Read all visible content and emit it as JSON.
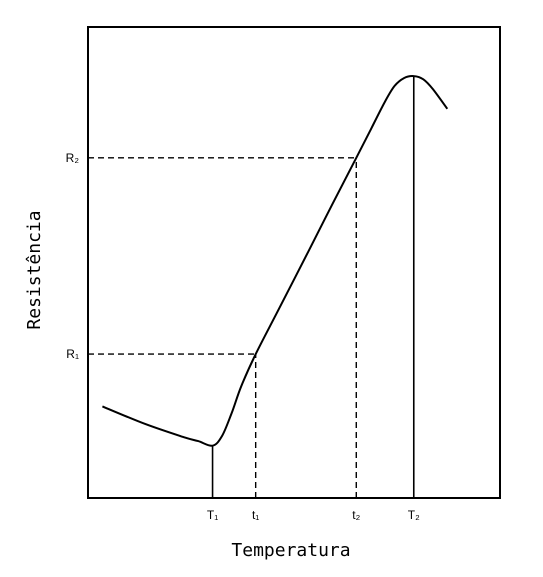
{
  "chart_data": {
    "type": "line",
    "title": "",
    "xlabel": "Temperatura",
    "ylabel": "Resistência",
    "grid": false,
    "legend": "none",
    "x_markers": [
      {
        "label": "T₁",
        "value": 1.0,
        "line": "solid",
        "curve_y": 0.8
      },
      {
        "label": "t₁",
        "value": 1.45,
        "line": "dashed",
        "curve_y": 2.2
      },
      {
        "label": "t₂",
        "value": 2.5,
        "line": "dashed",
        "curve_y": 5.2
      },
      {
        "label": "T₂",
        "value": 3.1,
        "line": "solid",
        "curve_y": 6.45
      }
    ],
    "y_markers": [
      {
        "label": "R₁",
        "value": 2.2
      },
      {
        "label": "R₂",
        "value": 5.2
      }
    ],
    "series": [
      {
        "points": [
          [
            -0.15,
            1.4
          ],
          [
            0.3,
            1.13
          ],
          [
            0.7,
            0.93
          ],
          [
            0.85,
            0.87
          ],
          [
            1.0,
            0.8
          ],
          [
            1.1,
            0.95
          ],
          [
            1.2,
            1.3
          ],
          [
            1.3,
            1.71
          ],
          [
            1.45,
            2.2
          ],
          [
            1.7,
            2.91
          ],
          [
            2.0,
            3.77
          ],
          [
            2.25,
            4.49
          ],
          [
            2.5,
            5.2
          ],
          [
            2.65,
            5.63
          ],
          [
            2.8,
            6.06
          ],
          [
            2.9,
            6.3
          ],
          [
            3.0,
            6.42
          ],
          [
            3.1,
            6.45
          ],
          [
            3.2,
            6.4
          ],
          [
            3.3,
            6.25
          ],
          [
            3.45,
            5.95
          ]
        ]
      }
    ],
    "xlim": [
      -0.3,
      4.0
    ],
    "ylim": [
      0,
      7.2
    ]
  }
}
